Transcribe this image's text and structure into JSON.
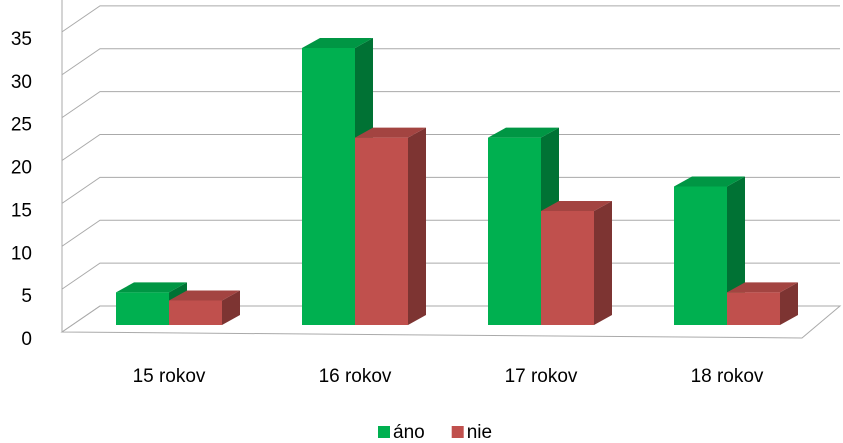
{
  "chart_data": {
    "type": "bar3d",
    "categories": [
      "15 rokov",
      "16 rokov",
      "17 rokov",
      "18 rokov"
    ],
    "series": [
      {
        "name": "áno",
        "color": "#00b050",
        "values": [
          4,
          34,
          23,
          17
        ]
      },
      {
        "name": "nie",
        "color": "#c0504d",
        "values": [
          3,
          23,
          14,
          4
        ]
      }
    ],
    "ylim": [
      0,
      40
    ],
    "yticks": [
      0,
      5,
      10,
      15,
      20,
      25,
      30,
      35
    ],
    "grid": true,
    "legend": "bottom"
  }
}
